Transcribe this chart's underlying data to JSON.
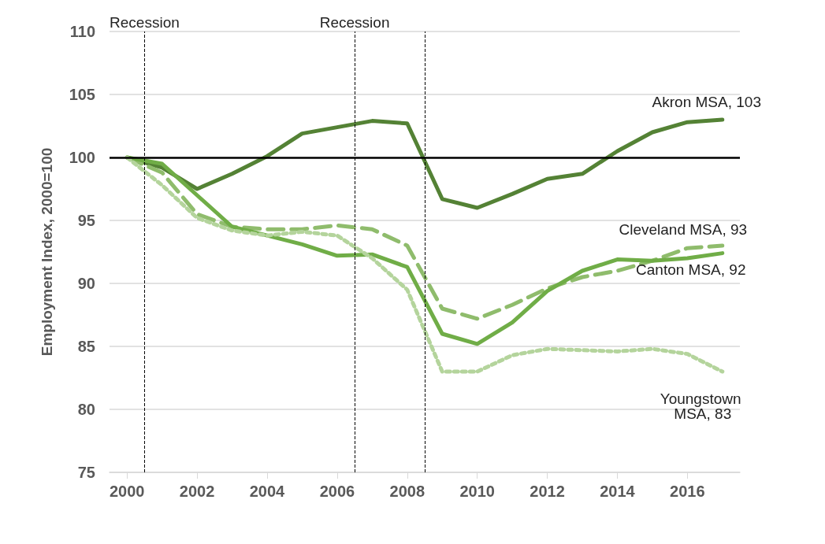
{
  "chart_data": {
    "type": "line",
    "ylabel": "Employment Index, 2000=100",
    "x": [
      2000,
      2001,
      2002,
      2003,
      2004,
      2005,
      2006,
      2007,
      2008,
      2009,
      2010,
      2011,
      2012,
      2013,
      2014,
      2015,
      2016,
      2017
    ],
    "xlim": [
      1999.5,
      2017.5
    ],
    "xticks": [
      2000,
      2002,
      2004,
      2006,
      2008,
      2010,
      2012,
      2014,
      2016
    ],
    "ylim": [
      75,
      110
    ],
    "yticks": [
      75,
      80,
      85,
      90,
      95,
      100,
      105,
      110
    ],
    "grid": "y",
    "legend": false,
    "marker": "none",
    "series": [
      {
        "name": "Akron MSA, 103",
        "color": "#548235",
        "line_style": "solid",
        "values": [
          100,
          99.2,
          97.5,
          98.7,
          100.1,
          101.9,
          102.4,
          102.9,
          102.7,
          96.7,
          96.0,
          97.1,
          98.3,
          98.7,
          100.5,
          102.0,
          102.8,
          103.0
        ]
      },
      {
        "name": "Cleveland MSA, 93",
        "color": "#8fbc6c",
        "line_style": "dashed",
        "values": [
          100,
          98.8,
          95.5,
          94.5,
          94.3,
          94.3,
          94.6,
          94.3,
          93.0,
          88.0,
          87.2,
          88.3,
          89.6,
          90.5,
          91.0,
          91.8,
          92.8,
          93.0
        ]
      },
      {
        "name": "Canton MSA, 92",
        "color": "#70ad47",
        "line_style": "solid",
        "values": [
          100,
          99.5,
          97.0,
          94.5,
          93.8,
          93.1,
          92.2,
          92.3,
          91.3,
          86.0,
          85.2,
          86.9,
          89.4,
          91.0,
          91.9,
          91.8,
          92.0,
          92.4
        ]
      },
      {
        "name": "Youngstown MSA, 83",
        "color": "#b4d49c",
        "line_style": "dotted",
        "values": [
          100,
          97.8,
          95.2,
          94.2,
          93.8,
          94.1,
          93.8,
          92.0,
          89.5,
          83.0,
          83.0,
          84.3,
          84.8,
          84.7,
          84.6,
          84.8,
          84.4,
          83.0
        ]
      }
    ],
    "ref_lines": [
      {
        "axis": "y",
        "value": 100,
        "color": "#000000",
        "line_style": "solid"
      },
      {
        "axis": "x",
        "value": 2000.5,
        "label": "Recession",
        "color": "#000000",
        "line_style": "dashed"
      },
      {
        "axis": "x",
        "value": 2006.5,
        "label": "Recession",
        "color": "#000000",
        "line_style": "dashed"
      },
      {
        "axis": "x",
        "value": 2008.5,
        "color": "#000000",
        "line_style": "dashed"
      }
    ]
  }
}
